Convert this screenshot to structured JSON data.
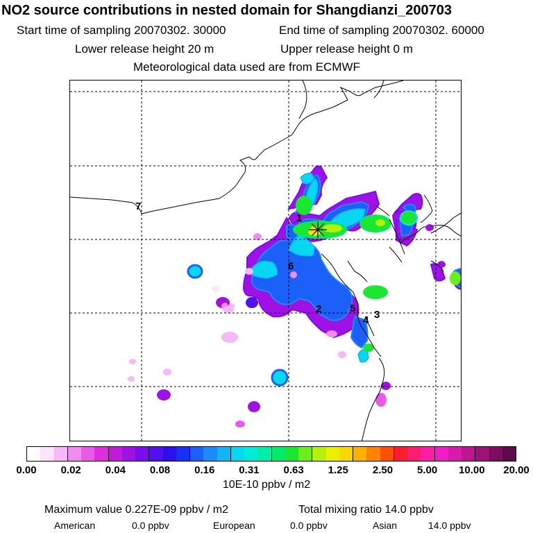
{
  "header": {
    "title": "NO2 source contributions in nested domain for Shangdianzi_200703",
    "start": "Start time of sampling 20070302. 30000",
    "end": "End time of sampling 20070302. 60000",
    "lower": "Lower release height   20 m",
    "upper": "Upper release height    0 m",
    "met": "Meteorological data used are from ECMWF"
  },
  "chart_data": {
    "type": "heatmap",
    "title": "NO2 source contributions in nested domain for Shangdianzi_200703",
    "units": "10E-10 ppbv / m2",
    "colorbar_ticks": [
      "0.00",
      "0.02",
      "0.04",
      "0.08",
      "0.16",
      "0.31",
      "0.63",
      "1.25",
      "2.50",
      "5.00",
      "10.00",
      "20.00"
    ],
    "colorbar_colors": [
      "#ffffff",
      "#fce4fc",
      "#f6b8f6",
      "#f08cf0",
      "#e95ae9",
      "#dd2ddd",
      "#c21bd7",
      "#a011e6",
      "#7a0cf0",
      "#5010f0",
      "#2c10ec",
      "#1630f4",
      "#1c60fa",
      "#1a8cfa",
      "#14b4f8",
      "#06d8f2",
      "#00ecd6",
      "#00f0a8",
      "#00ea6c",
      "#1ae830",
      "#6af018",
      "#b4f20a",
      "#e8f000",
      "#fcd800",
      "#fcb000",
      "#fc8400",
      "#fc5000",
      "#fc1c30",
      "#fc1c6c",
      "#fc1ca8",
      "#f01cc6",
      "#d81aaa",
      "#bc1690",
      "#9c1278",
      "#7c0e60",
      "#5c0a48"
    ],
    "max_value": "Maximum value  0.227E-09 ppbv / m2",
    "total": "Total mixing ratio      14.0 ppbv",
    "regions": [
      {
        "name": "American",
        "value": "0.0 ppbv"
      },
      {
        "name": "European",
        "value": "0.0 ppbv"
      },
      {
        "name": "Asian",
        "value": "14.0 ppbv"
      }
    ],
    "markers": [
      "1",
      "2",
      "3",
      "4",
      "5",
      "6",
      "7"
    ]
  }
}
